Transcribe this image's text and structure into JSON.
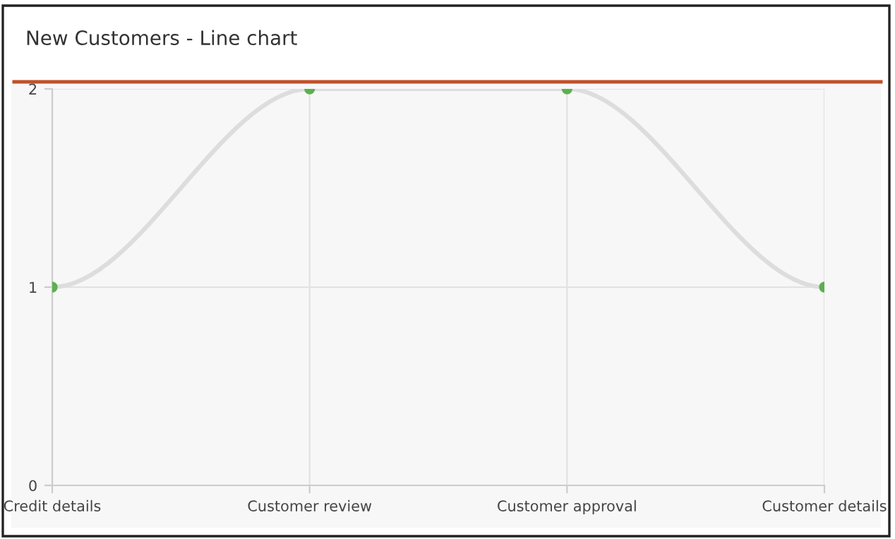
{
  "chart_data": {
    "type": "line",
    "title": "New Customers - Line chart",
    "categories": [
      "Credit details",
      "Customer review",
      "Customer approval",
      "Customer details"
    ],
    "series": [
      {
        "color": "#dddddd",
        "values": [
          1,
          2,
          2,
          1
        ]
      }
    ],
    "ylim": [
      0,
      2
    ],
    "yticks": [
      0,
      1,
      2
    ],
    "grid": true,
    "marker": "circle",
    "line_style": "solid"
  }
}
